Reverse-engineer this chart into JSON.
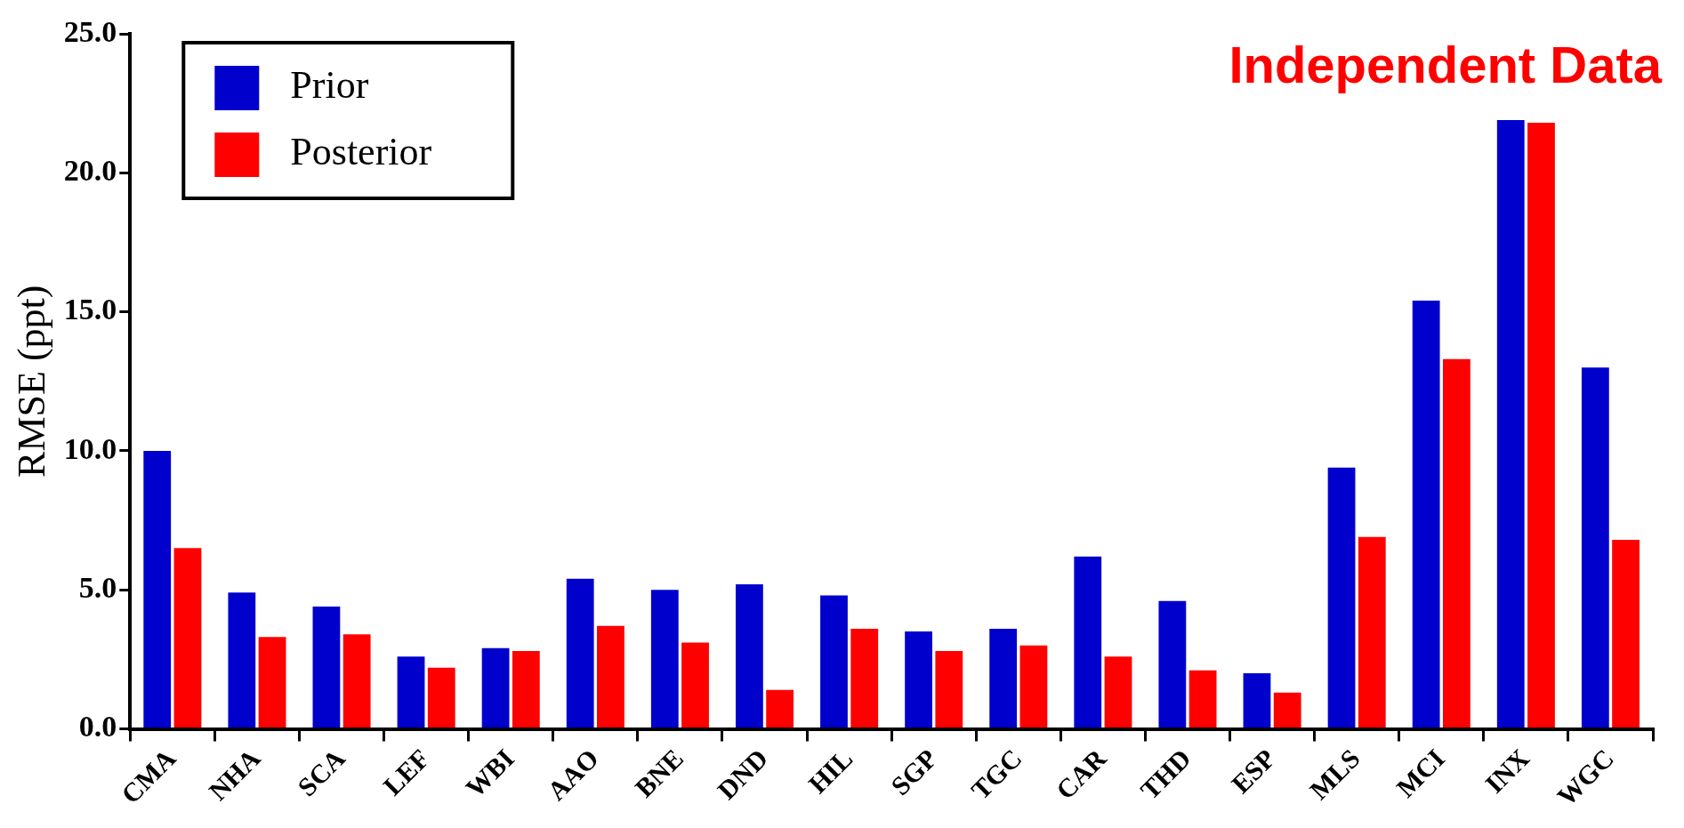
{
  "chart_data": {
    "type": "bar",
    "ylabel": "RMSE (ppt)",
    "annotations": [
      "Independent Data"
    ],
    "categories": [
      "CMA",
      "NHA",
      "SCA",
      "LEF",
      "WBI",
      "AAO",
      "BNE",
      "DND",
      "HIL",
      "SGP",
      "TGC",
      "CAR",
      "THD",
      "ESP",
      "MLS",
      "MCI",
      "INX",
      "WGC"
    ],
    "series": [
      {
        "name": "Prior",
        "color": "#0000cc",
        "values": [
          10.0,
          4.9,
          4.4,
          2.6,
          2.9,
          5.4,
          5.0,
          5.2,
          4.8,
          3.5,
          3.6,
          6.2,
          4.6,
          2.0,
          9.4,
          15.4,
          21.9,
          13.0
        ]
      },
      {
        "name": "Posterior",
        "color": "#ff0000",
        "values": [
          6.5,
          3.3,
          3.4,
          2.2,
          2.8,
          3.7,
          3.1,
          1.4,
          3.6,
          2.8,
          3.0,
          2.6,
          2.1,
          1.3,
          6.9,
          13.3,
          21.8,
          6.8
        ]
      }
    ],
    "ylim": [
      0,
      25
    ],
    "yticks": [
      {
        "value": 0,
        "label": "0.0"
      },
      {
        "value": 5,
        "label": "5.0"
      },
      {
        "value": 10,
        "label": "10.0"
      },
      {
        "value": 15,
        "label": "15.0"
      },
      {
        "value": 20,
        "label": "20.0"
      },
      {
        "value": 25,
        "label": "25.0"
      }
    ],
    "grid": false,
    "legend": "top left"
  }
}
